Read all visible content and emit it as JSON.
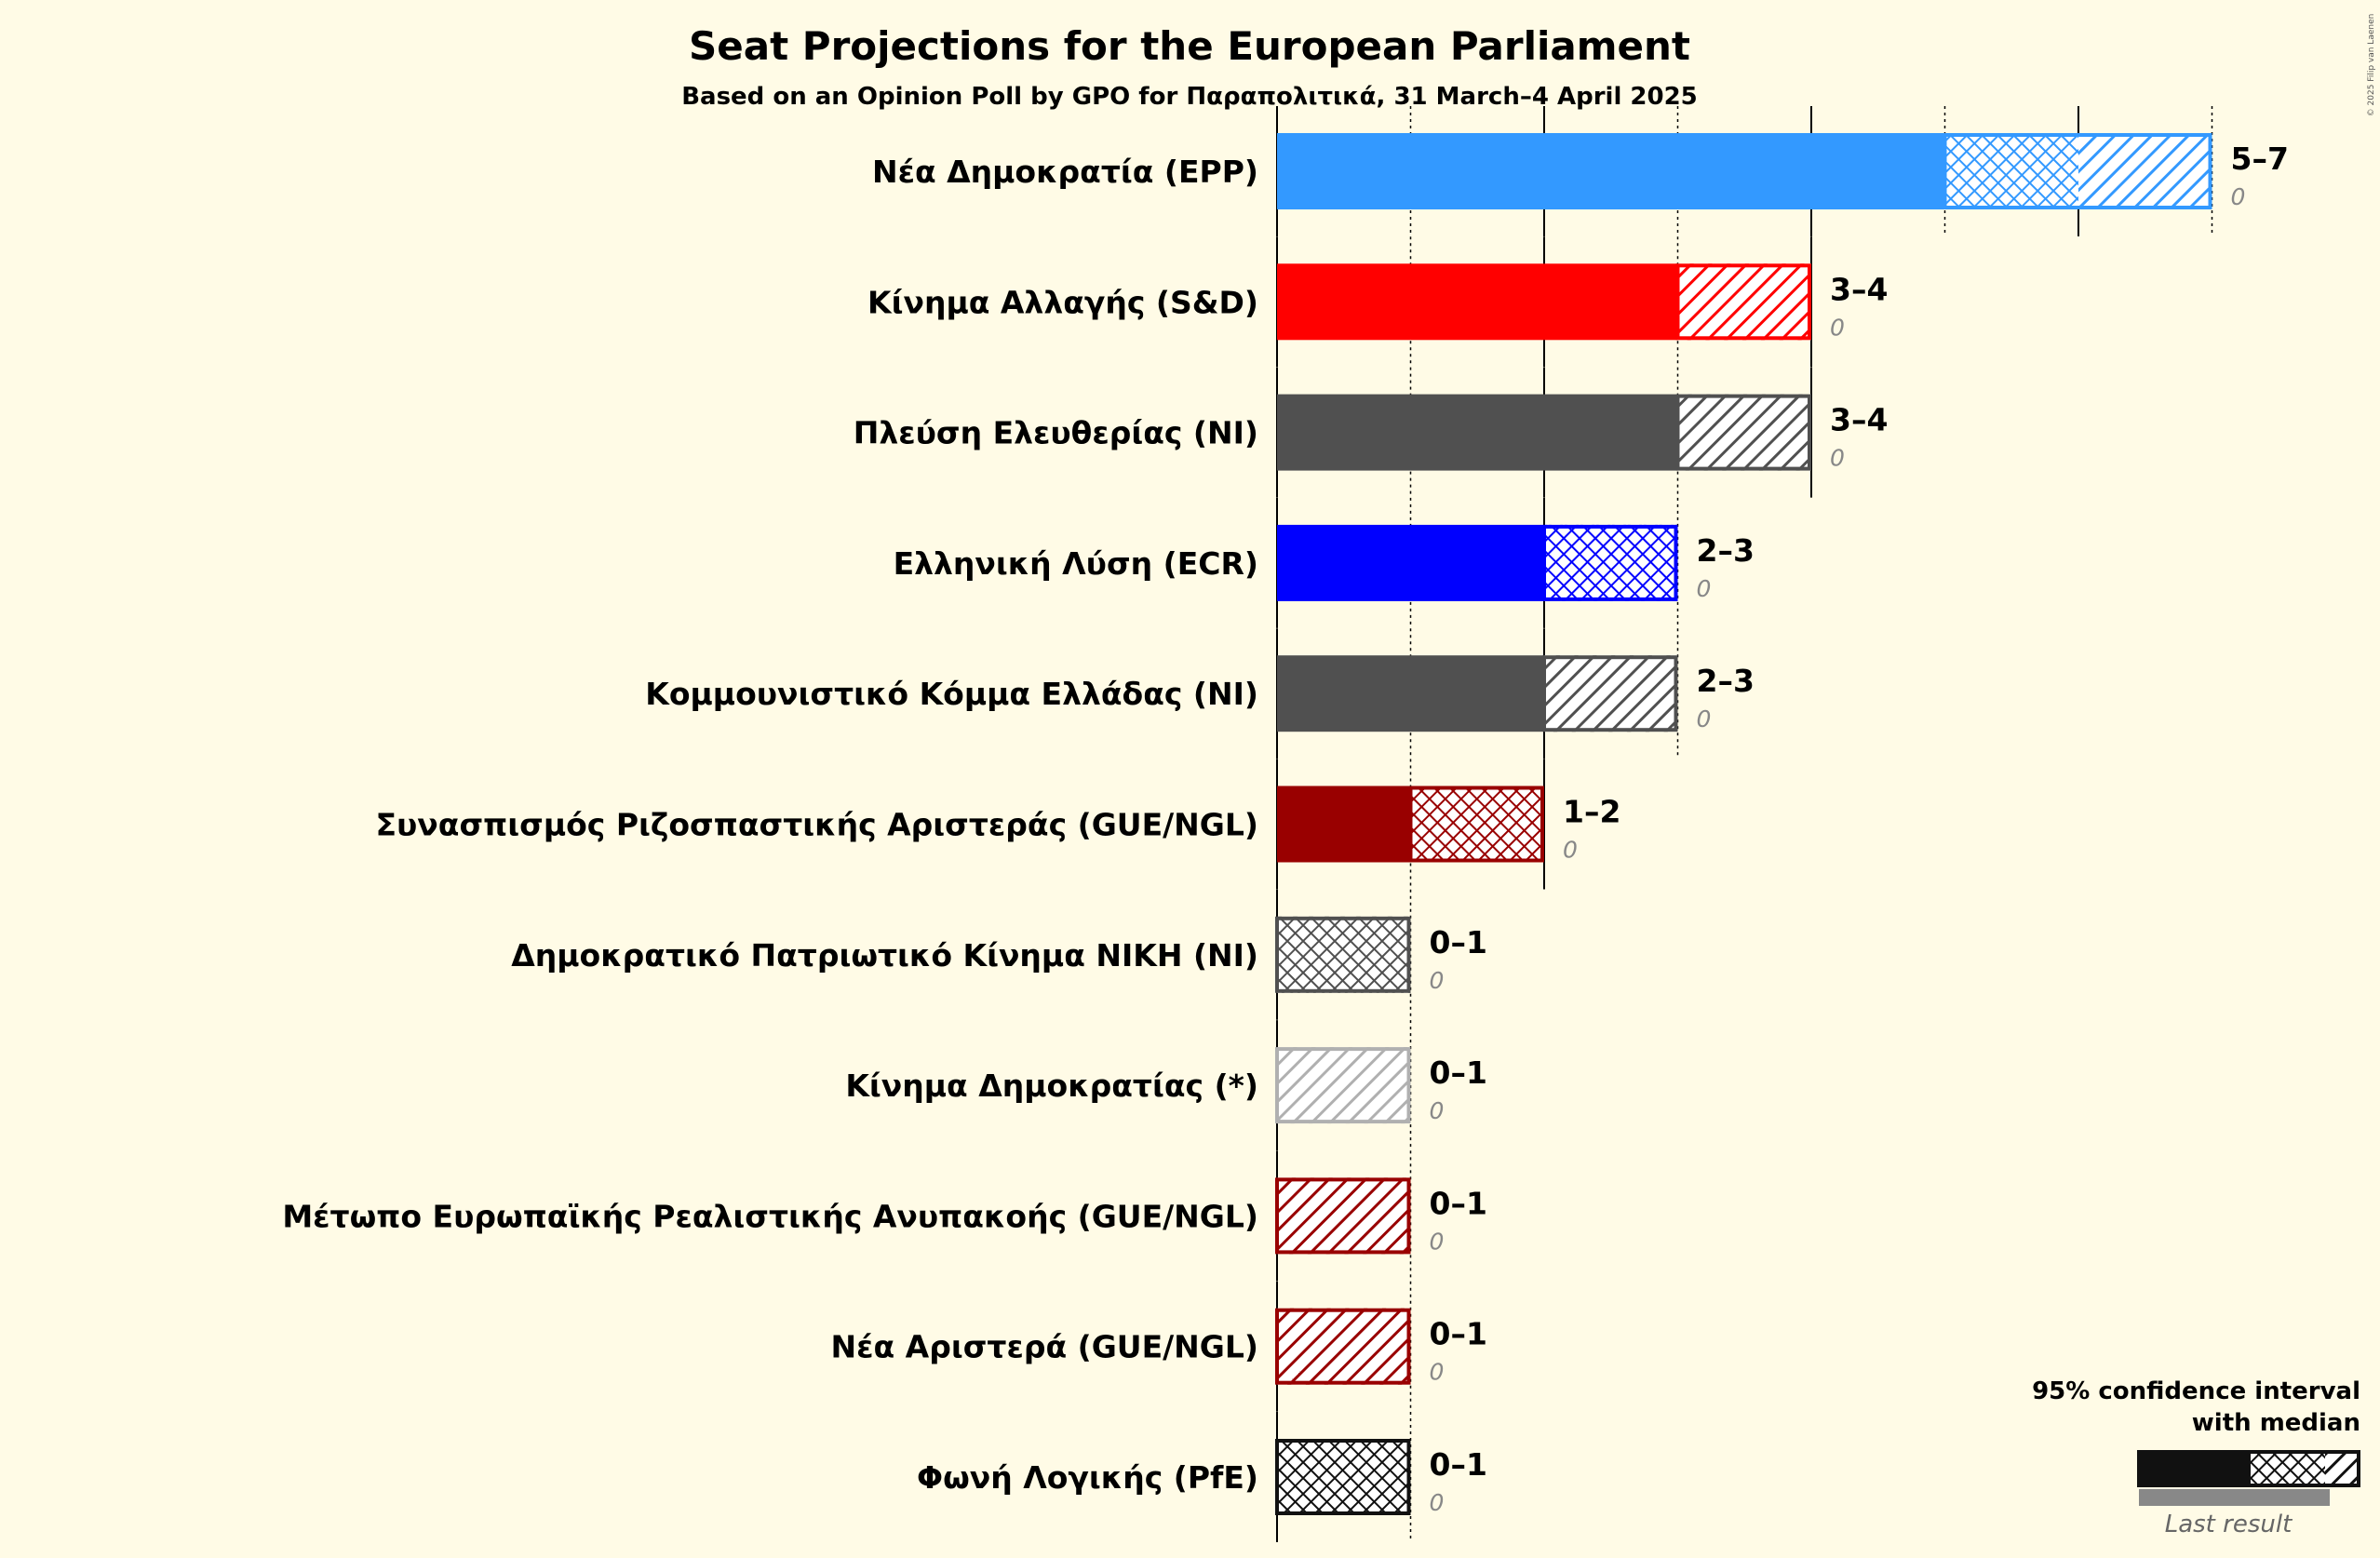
{
  "title": "Seat Projections for the European Parliament",
  "subtitle": "Based on an Opinion Poll by GPO for Παραπολιτικά, 31 March–4 April 2025",
  "copyright": "© 2025 Filip van Laenen",
  "legend": {
    "line1": "95% confidence interval",
    "line2": "with median",
    "last_result": "Last result"
  },
  "colors": {
    "background": "#fffbe6",
    "legend_last": "#888888"
  },
  "chart_data": {
    "type": "bar",
    "orientation": "horizontal",
    "x_unit": "seats",
    "grid": true,
    "legend_placement": "bottom-right",
    "parties": [
      {
        "label": "Νέα Δημοκρατία (EPP)",
        "low": 5,
        "median": 6,
        "high": 7,
        "range_label": "5–7",
        "last_label": "0",
        "color": "#3399ff"
      },
      {
        "label": "Κίνημα Αλλαγής (S&D)",
        "low": 3,
        "median": 3,
        "high": 4,
        "range_label": "3–4",
        "last_label": "0",
        "color": "#ff0000"
      },
      {
        "label": "Πλεύση Ελευθερίας (NI)",
        "low": 3,
        "median": 3,
        "high": 4,
        "range_label": "3–4",
        "last_label": "0",
        "color": "#505050"
      },
      {
        "label": "Ελληνική Λύση (ECR)",
        "low": 2,
        "median": 3,
        "high": 3,
        "range_label": "2–3",
        "last_label": "0",
        "color": "#0000ff"
      },
      {
        "label": "Κομμουνιστικό Κόμμα Ελλάδας (NI)",
        "low": 2,
        "median": 2,
        "high": 3,
        "range_label": "2–3",
        "last_label": "0",
        "color": "#505050"
      },
      {
        "label": "Συνασπισμός Ριζοσπαστικής Αριστεράς (GUE/NGL)",
        "low": 1,
        "median": 2,
        "high": 2,
        "range_label": "1–2",
        "last_label": "0",
        "color": "#990000"
      },
      {
        "label": "Δημοκρατικό Πατριωτικό Κίνημα ΝΙΚΗ (NI)",
        "low": 0,
        "median": 1,
        "high": 1,
        "range_label": "0–1",
        "last_label": "0",
        "color": "#505050"
      },
      {
        "label": "Κίνημα Δημοκρατίας (*)",
        "low": 0,
        "median": 0,
        "high": 1,
        "range_label": "0–1",
        "last_label": "0",
        "color": "#b0b0b0"
      },
      {
        "label": "Μέτωπο Ευρωπαϊκής Ρεαλιστικής Ανυπακοής (GUE/NGL)",
        "low": 0,
        "median": 0,
        "high": 1,
        "range_label": "0–1",
        "last_label": "0",
        "color": "#990000"
      },
      {
        "label": "Νέα Αριστερά (GUE/NGL)",
        "low": 0,
        "median": 0,
        "high": 1,
        "range_label": "0–1",
        "last_label": "0",
        "color": "#990000"
      },
      {
        "label": "Φωνή Λογικής (PfE)",
        "low": 0,
        "median": 1,
        "high": 1,
        "range_label": "0–1",
        "last_label": "0",
        "color": "#111111"
      }
    ]
  }
}
